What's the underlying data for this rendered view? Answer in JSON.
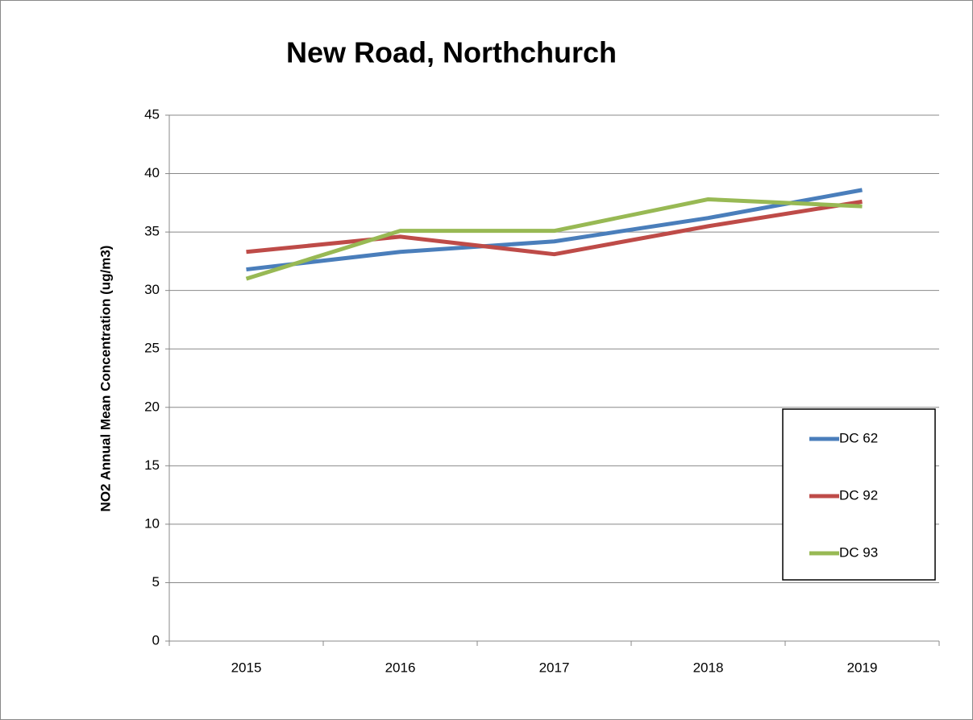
{
  "chart_data": {
    "type": "line",
    "title": "New Road, Northchurch",
    "y_label": "NO2 Annual Mean Concentration (ug/m3)",
    "categories": [
      "2015",
      "2016",
      "2017",
      "2018",
      "2019"
    ],
    "series": [
      {
        "name": "DC 62",
        "color": "#4a7ebb",
        "values": [
          31.8,
          33.3,
          34.2,
          36.2,
          38.6
        ]
      },
      {
        "name": "DC 92",
        "color": "#be4b48",
        "values": [
          33.3,
          34.6,
          33.1,
          35.5,
          37.6
        ]
      },
      {
        "name": "DC 93",
        "color": "#98b954",
        "values": [
          31.0,
          35.1,
          35.1,
          37.8,
          37.2
        ]
      }
    ],
    "ylim": [
      0,
      45
    ],
    "yticks": [
      0,
      5,
      10,
      15,
      20,
      25,
      30,
      35,
      40,
      45
    ],
    "grid": true,
    "legend": "right"
  }
}
